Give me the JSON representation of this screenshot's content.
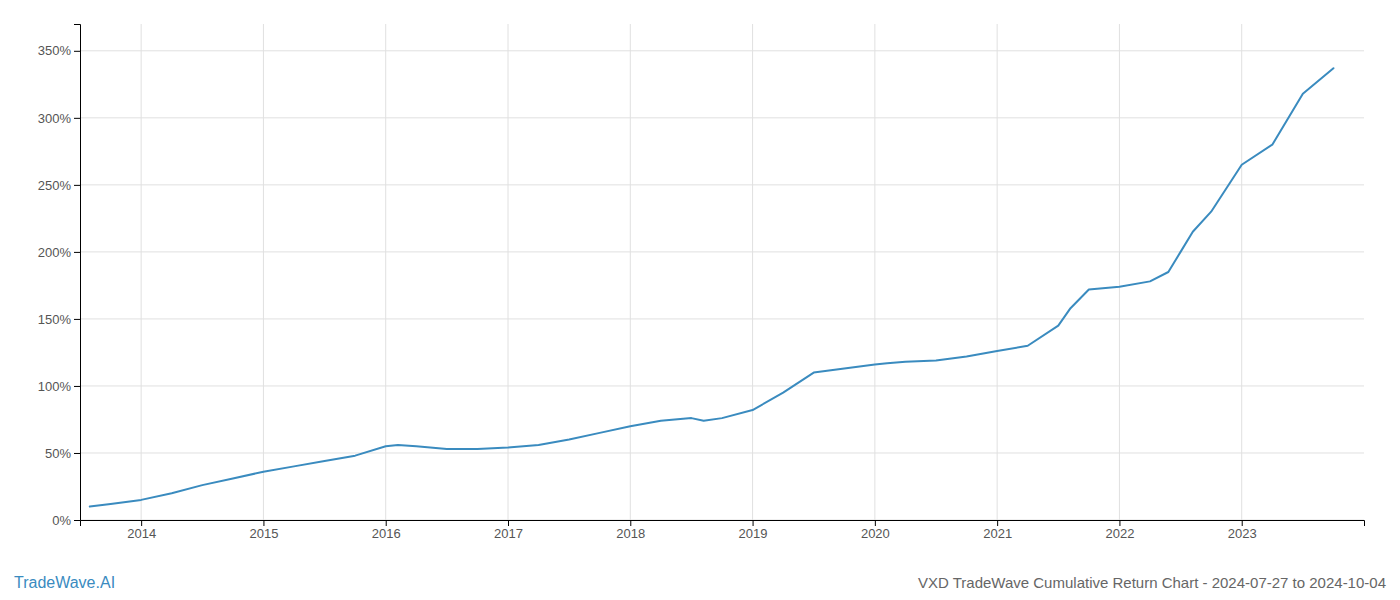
{
  "chart_data": {
    "type": "line",
    "title": "VXD TradeWave Cumulative Return Chart - 2024-07-27 to 2024-10-04",
    "annotations": [
      {
        "text": "TradeWave.AI",
        "color": "#3a8bbf"
      }
    ],
    "x": [
      2013.58,
      2013.75,
      2014.0,
      2014.25,
      2014.5,
      2014.75,
      2015.0,
      2015.25,
      2015.5,
      2015.75,
      2016.0,
      2016.1,
      2016.25,
      2016.5,
      2016.75,
      2017.0,
      2017.25,
      2017.5,
      2017.75,
      2018.0,
      2018.25,
      2018.5,
      2018.6,
      2018.75,
      2019.0,
      2019.25,
      2019.5,
      2019.75,
      2020.0,
      2020.1,
      2020.25,
      2020.5,
      2020.75,
      2021.0,
      2021.25,
      2021.5,
      2021.6,
      2021.75,
      2022.0,
      2022.25,
      2022.4,
      2022.5,
      2022.6,
      2022.75,
      2023.0,
      2023.25,
      2023.5,
      2023.75
    ],
    "values": [
      10,
      12,
      15,
      20,
      26,
      31,
      36,
      40,
      44,
      48,
      55,
      56,
      55,
      53,
      53,
      54,
      56,
      60,
      65,
      70,
      74,
      76,
      74,
      76,
      82,
      95,
      110,
      113,
      116,
      117,
      118,
      119,
      122,
      126,
      130,
      145,
      158,
      172,
      174,
      178,
      185,
      200,
      215,
      230,
      265,
      280,
      318,
      337
    ],
    "color": "#3a8bbf",
    "xlim": [
      2013.5,
      2024.0
    ],
    "xticks": [
      2014,
      2015,
      2016,
      2017,
      2018,
      2019,
      2020,
      2021,
      2022,
      2023
    ],
    "ylim": [
      0,
      370
    ],
    "yticks": [
      {
        "value": 0,
        "label": "0%"
      },
      {
        "value": 50,
        "label": "50%"
      },
      {
        "value": 100,
        "label": "100%"
      },
      {
        "value": 150,
        "label": "150%"
      },
      {
        "value": 200,
        "label": "200%"
      },
      {
        "value": 250,
        "label": "250%"
      },
      {
        "value": 300,
        "label": "300%"
      },
      {
        "value": 350,
        "label": "350%"
      }
    ],
    "grid": true
  }
}
